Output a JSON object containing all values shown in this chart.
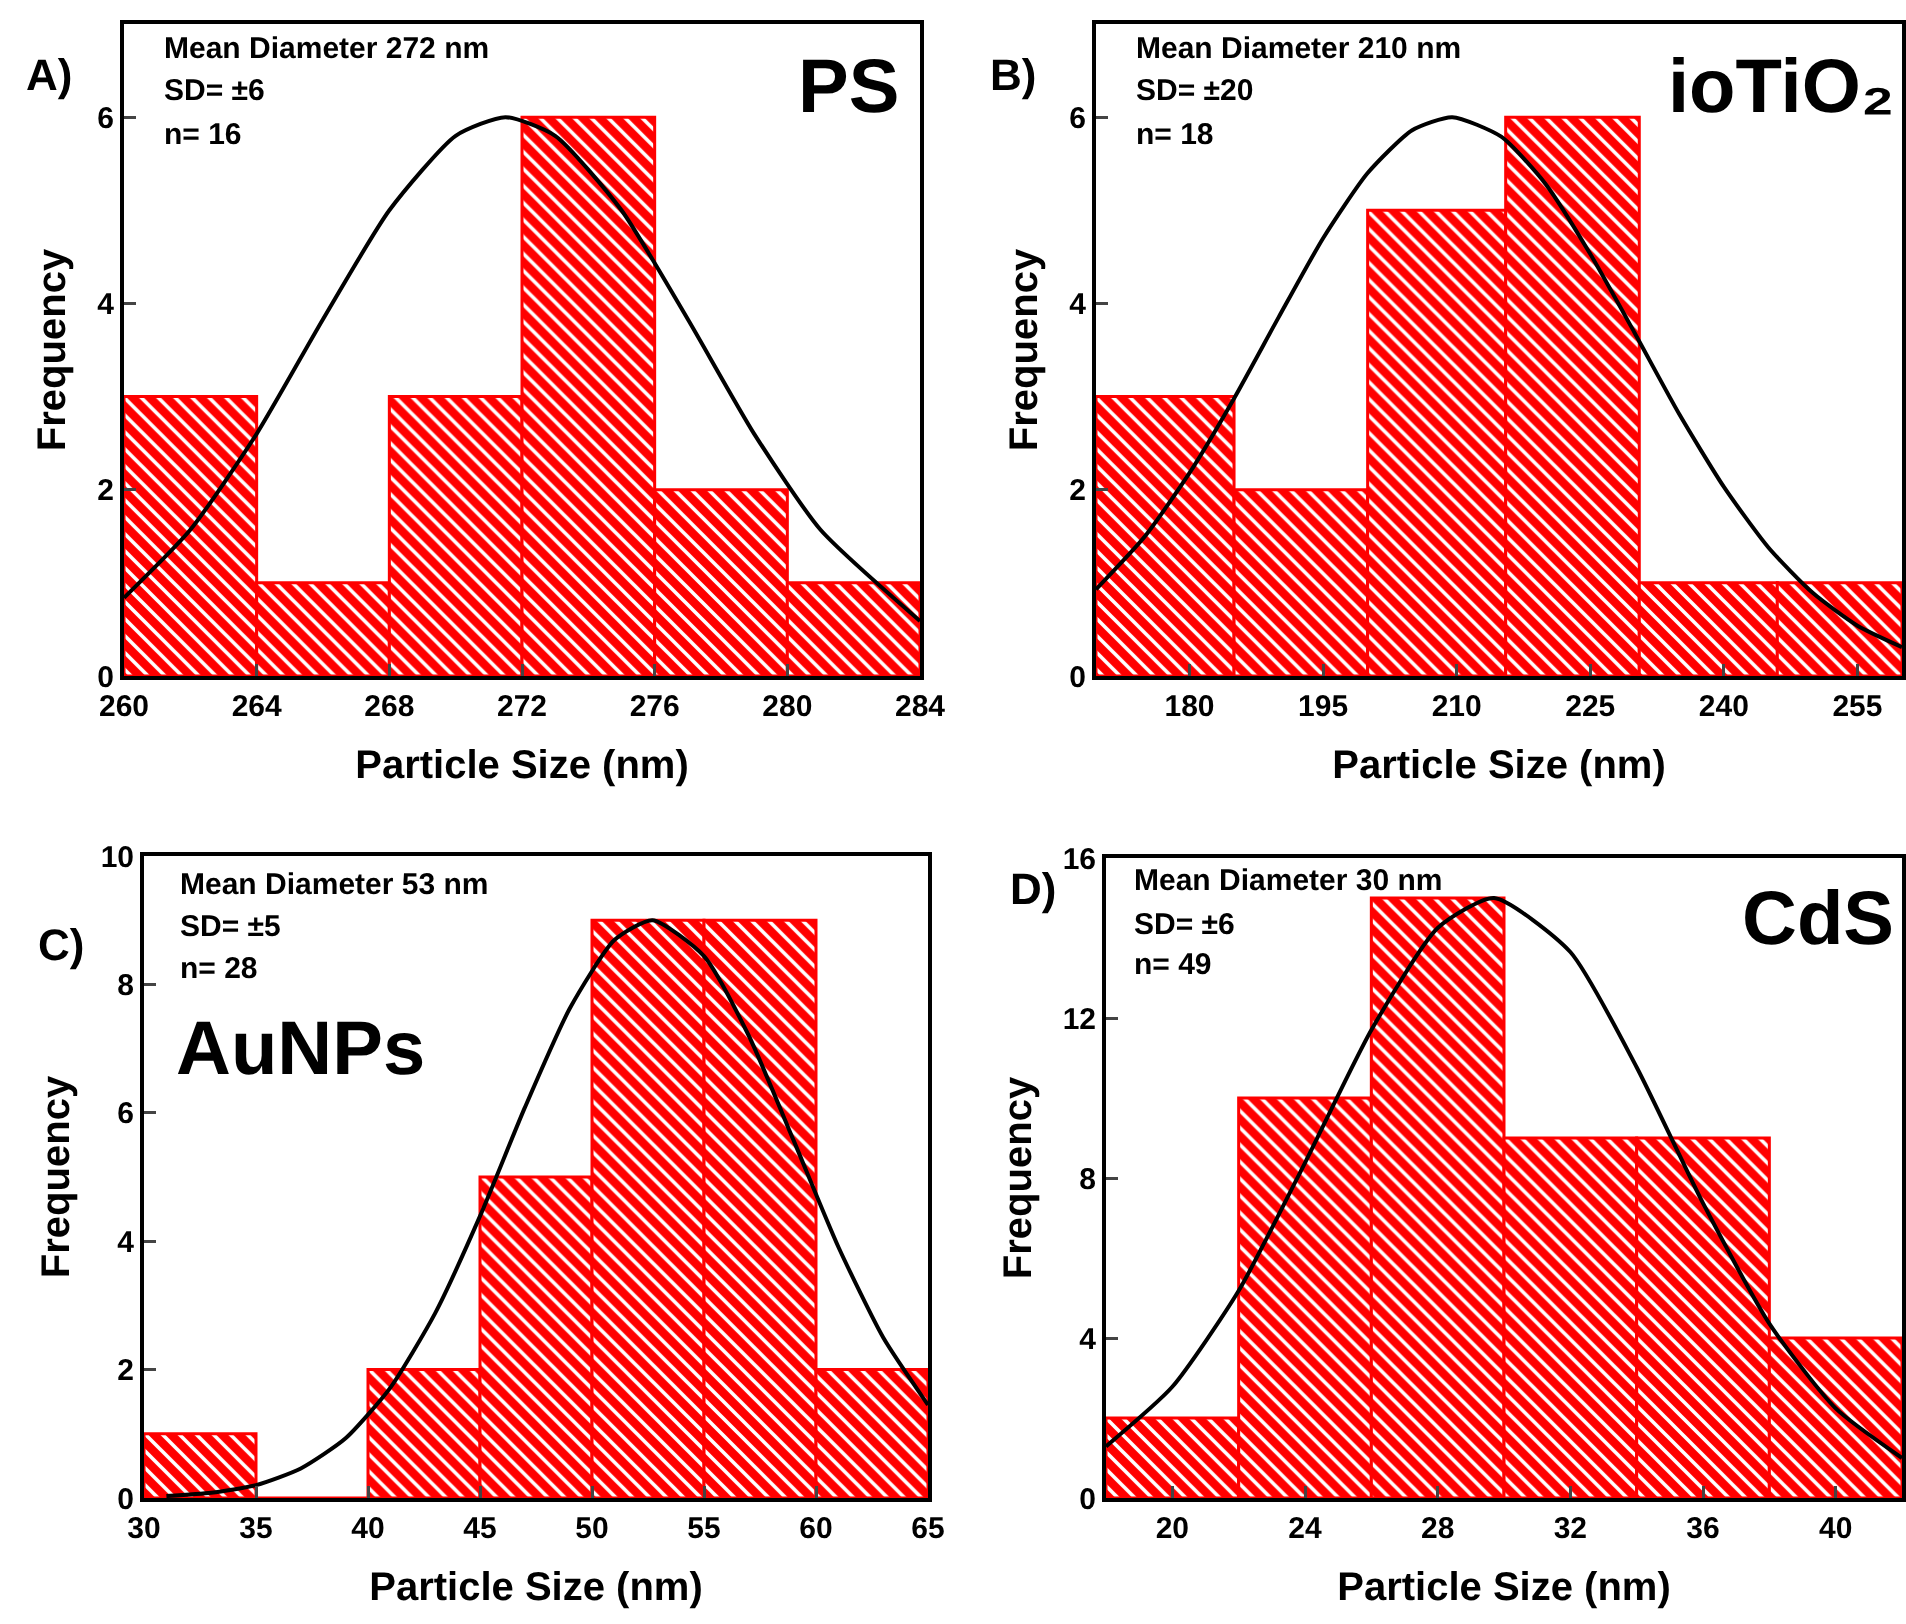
{
  "chart_data": [
    {
      "type": "histogram",
      "xlabel": "Particle Size (nm)",
      "ylabel": "Frequency",
      "annotations": [
        "A)",
        "Mean Diameter 272 nm",
        "SD= ±6",
        "n= 16",
        "PS"
      ],
      "bins": [
        260,
        264,
        268,
        272,
        276,
        280,
        284
      ],
      "values": [
        3,
        1,
        3,
        6,
        2,
        1
      ],
      "color": "#ff0000",
      "xlim": [
        260,
        284
      ],
      "xticks": [
        260,
        264,
        268,
        272,
        276,
        280,
        284
      ],
      "ylim": [
        0,
        7
      ],
      "yticks": [
        0,
        2,
        4,
        6
      ],
      "series": [
        {
          "type": "line",
          "color": "#000000",
          "marker": "none",
          "line_style": "solid",
          "x": [
            260,
            262,
            264,
            266,
            268,
            270,
            271.5,
            273,
            275,
            277,
            279,
            281,
            284
          ],
          "values": [
            0.84,
            1.57,
            2.6,
            3.83,
            5.0,
            5.8,
            6,
            5.8,
            5.0,
            3.83,
            2.6,
            1.57,
            0.59
          ]
        }
      ]
    },
    {
      "type": "histogram",
      "xlabel": "Particle Size (nm)",
      "ylabel": "Frequency",
      "annotations": [
        "B)",
        "Mean Diameter 210 nm",
        "SD= ±20",
        "n= 18",
        "ioTiO₂"
      ],
      "bins": [
        169.5,
        185,
        200,
        215.5,
        230.5,
        246,
        260
      ],
      "values": [
        3,
        2,
        5,
        6,
        1,
        1
      ],
      "color": "#ff0000",
      "xlim": [
        169.5,
        260
      ],
      "xticks": [
        180,
        195,
        210,
        225,
        240,
        255
      ],
      "ylim": [
        0,
        7
      ],
      "yticks": [
        0,
        2,
        4,
        6
      ],
      "series": [
        {
          "type": "line",
          "color": "#000000",
          "marker": "none",
          "line_style": "solid",
          "x": [
            169.5,
            175,
            180,
            185,
            190,
            195,
            200,
            205,
            209.5,
            215,
            220,
            225,
            230,
            235,
            240,
            245,
            250,
            255,
            260
          ],
          "values": [
            0.93,
            1.5,
            2.18,
            2.98,
            3.85,
            4.7,
            5.4,
            5.86,
            6,
            5.79,
            5.28,
            4.53,
            3.68,
            2.81,
            2.03,
            1.38,
            0.89,
            0.54,
            0.31
          ]
        }
      ]
    },
    {
      "type": "histogram",
      "xlabel": "Particle Size (nm)",
      "ylabel": "Frequency",
      "annotations": [
        "C)",
        "Mean Diameter 53 nm",
        "SD= ±5",
        "n= 28",
        "AuNPs"
      ],
      "bins": [
        30,
        35,
        40,
        45,
        50,
        55,
        60,
        65
      ],
      "values": [
        1,
        0,
        2,
        5,
        9,
        9,
        2
      ],
      "color": "#ff0000",
      "xlim": [
        30,
        65
      ],
      "xticks": [
        30,
        35,
        40,
        45,
        50,
        55,
        60,
        65
      ],
      "ylim": [
        0,
        10
      ],
      "yticks": [
        0,
        2,
        4,
        6,
        8,
        10
      ],
      "series": [
        {
          "type": "line",
          "color": "#000000",
          "marker": "none",
          "line_style": "solid",
          "x": [
            31,
            33,
            35,
            37,
            39,
            41,
            43,
            45,
            47,
            49,
            51,
            52.7,
            55,
            57,
            59,
            61,
            63,
            65
          ],
          "values": [
            0.03,
            0.08,
            0.2,
            0.46,
            0.93,
            1.72,
            2.88,
            4.39,
            6.08,
            7.62,
            8.69,
            9,
            8.44,
            7.2,
            5.57,
            3.91,
            2.5,
            1.45
          ]
        }
      ]
    },
    {
      "type": "histogram",
      "xlabel": "Particle Size (nm)",
      "ylabel": "Frequency",
      "annotations": [
        "D)",
        "Mean Diameter 30 nm",
        "SD= ±6",
        "n= 49",
        "CdS"
      ],
      "bins": [
        18,
        22,
        26,
        30,
        34,
        38,
        42
      ],
      "values": [
        2,
        10,
        15,
        9,
        9,
        4
      ],
      "color": "#ff0000",
      "xlim": [
        18,
        42
      ],
      "xticks": [
        20,
        24,
        28,
        32,
        36,
        40
      ],
      "ylim": [
        0,
        16
      ],
      "yticks": [
        0,
        4,
        8,
        12,
        16
      ],
      "series": [
        {
          "type": "line",
          "color": "#000000",
          "marker": "none",
          "line_style": "solid",
          "x": [
            18,
            20,
            22,
            24,
            26,
            28,
            29.7,
            32,
            34,
            36,
            38,
            40,
            42
          ],
          "values": [
            1.29,
            2.78,
            5.18,
            8.38,
            11.7,
            14.25,
            15,
            13.65,
            10.77,
            7.37,
            4.36,
            2.24,
            1.0
          ]
        }
      ]
    }
  ]
}
